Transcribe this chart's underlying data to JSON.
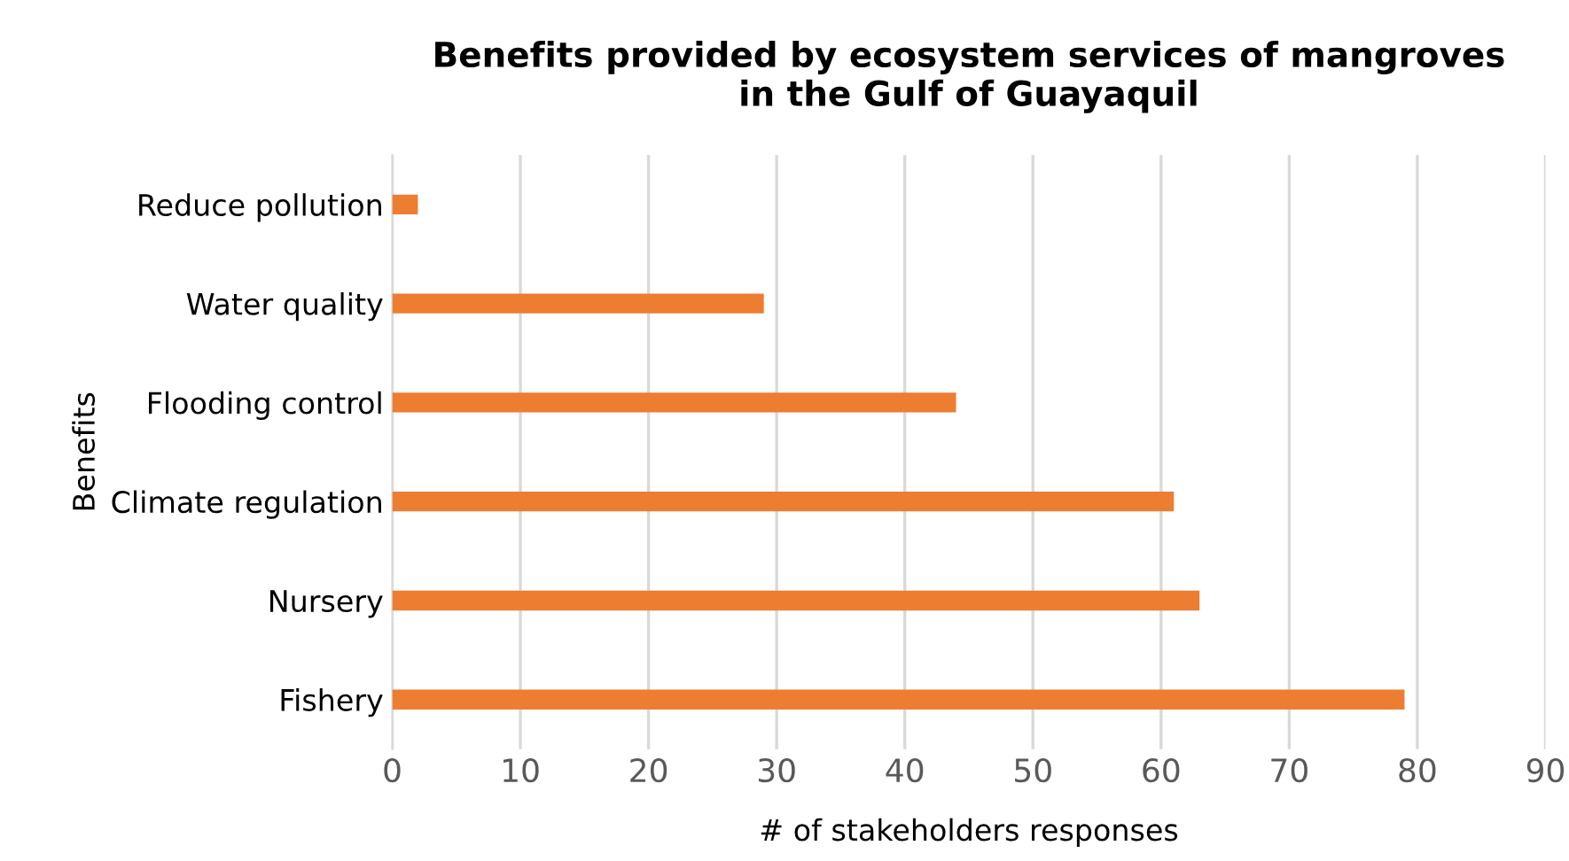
{
  "chart_data": {
    "type": "bar",
    "orientation": "horizontal",
    "title": "Benefits provided by ecosystem services of mangroves\nin the Gulf of Guayaquil",
    "xlabel": "# of stakeholders responses",
    "ylabel": "Benefits",
    "categories": [
      "Reduce pollution",
      "Water quality",
      "Flooding control",
      "Climate regulation",
      "Nursery",
      "Fishery"
    ],
    "values": [
      2,
      29,
      44,
      61,
      63,
      79
    ],
    "color": "#ed7d31",
    "xlim": [
      0,
      90
    ],
    "xticks": [
      0,
      10,
      20,
      30,
      40,
      50,
      60,
      70,
      80,
      90
    ],
    "grid": "x",
    "legend": false
  }
}
